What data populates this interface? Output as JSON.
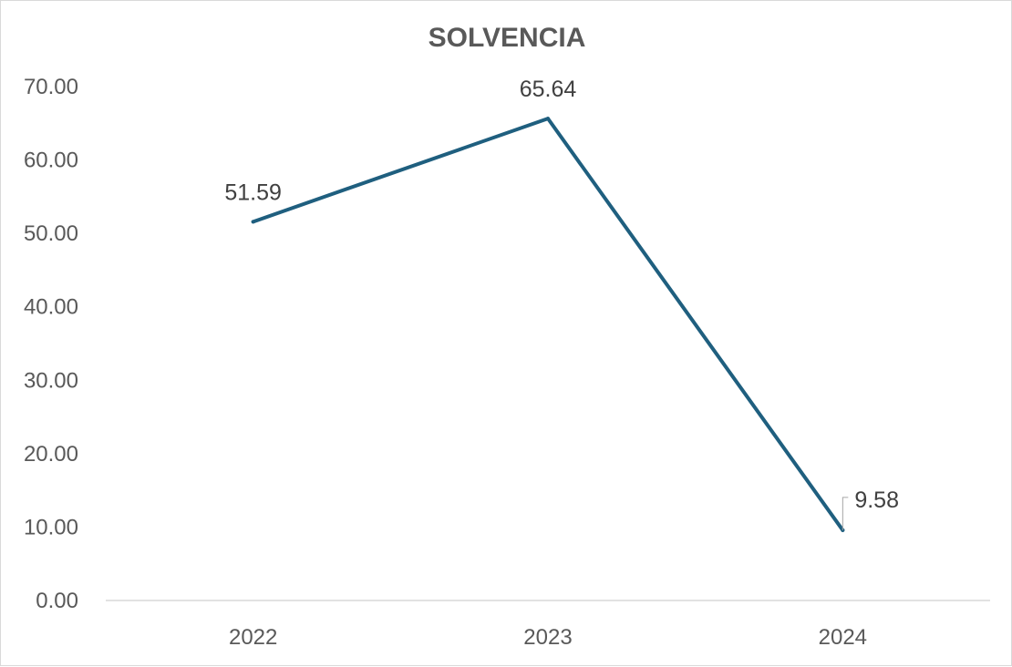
{
  "chart_data": {
    "type": "line",
    "title": "SOLVENCIA",
    "categories": [
      "2022",
      "2023",
      "2024"
    ],
    "series": [
      {
        "values": [
          51.59,
          65.64,
          9.58
        ]
      }
    ],
    "data_labels": [
      "51.59",
      "65.64",
      "9.58"
    ],
    "y_ticks": [
      "0.00",
      "10.00",
      "20.00",
      "30.00",
      "40.00",
      "50.00",
      "60.00",
      "70.00"
    ],
    "ylim": [
      0,
      70
    ],
    "grid": false,
    "legend": "none",
    "line_color": "#1f5f7f"
  }
}
